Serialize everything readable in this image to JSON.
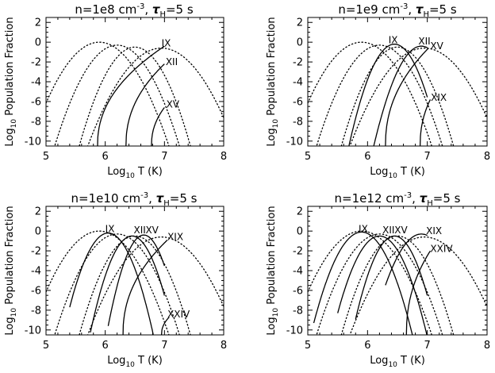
{
  "chart_data": [
    {
      "type": "line",
      "title_prefix": "n=1e8 cm",
      "title_sup": "-3",
      "title_mid": ", ",
      "title_tau": "τ",
      "title_tau_sub": "H",
      "title_suffix": "=5 s",
      "xlabel_pre": "Log",
      "xlabel_sub": "10",
      "xlabel_post": " T (K)",
      "ylabel_pre": "Log",
      "ylabel_sub": "10",
      "ylabel_post": " Population Fraction",
      "xlim": [
        5,
        8
      ],
      "ylim": [
        -10.5,
        2.5
      ],
      "xticks": [
        "5",
        "6",
        "7",
        "8"
      ],
      "yticks": [
        "2",
        "0",
        "-2",
        "-4",
        "-6",
        "-8",
        "-10"
      ],
      "series": [
        {
          "style": "dotted",
          "peak_x": 5.9,
          "peak_y": 0.0,
          "w": 0.55
        },
        {
          "style": "dotted",
          "peak_x": 6.2,
          "peak_y": -0.3,
          "w": 0.5
        },
        {
          "style": "dotted",
          "peak_x": 6.5,
          "peak_y": -0.5,
          "w": 0.45
        },
        {
          "style": "dotted",
          "peak_x": 6.95,
          "peak_y": -0.6,
          "w": 0.6
        },
        {
          "style": "solid",
          "start_x": 5.87,
          "end_x": 7.0,
          "end_y": -0.4
        },
        {
          "style": "solid",
          "start_x": 6.35,
          "end_x": 7.0,
          "end_y": -2.2
        },
        {
          "style": "solid",
          "start_x": 6.78,
          "end_x": 7.0,
          "end_y": -6.6
        }
      ],
      "labels": [
        {
          "text": "IX",
          "x": 6.95,
          "y": -0.1
        },
        {
          "text": "XII",
          "x": 7.02,
          "y": -2.0
        },
        {
          "text": "XV",
          "x": 7.03,
          "y": -6.3
        }
      ]
    },
    {
      "type": "line",
      "title_prefix": "n=1e9 cm",
      "title_sup": "-3",
      "title_mid": ", ",
      "title_tau": "τ",
      "title_tau_sub": "H",
      "title_suffix": "=5 s",
      "xlabel_pre": "Log",
      "xlabel_sub": "10",
      "xlabel_post": " T (K)",
      "ylabel_pre": "Log",
      "ylabel_sub": "10",
      "ylabel_post": " Population Fraction",
      "xlim": [
        5,
        8
      ],
      "ylim": [
        -10.5,
        2.5
      ],
      "xticks": [
        "5",
        "6",
        "7",
        "8"
      ],
      "yticks": [
        "2",
        "0",
        "-2",
        "-4",
        "-6",
        "-8",
        "-10"
      ],
      "series": [
        {
          "style": "dotted",
          "peak_x": 5.9,
          "peak_y": 0.0,
          "w": 0.55
        },
        {
          "style": "dotted",
          "peak_x": 6.2,
          "peak_y": -0.3,
          "w": 0.5
        },
        {
          "style": "dotted",
          "peak_x": 6.5,
          "peak_y": -0.5,
          "w": 0.45
        },
        {
          "style": "dotted",
          "peak_x": 6.95,
          "peak_y": -0.6,
          "w": 0.6
        },
        {
          "style": "solid",
          "peak_x": 6.45,
          "peak_y": -0.2,
          "w": 0.36,
          "start_x": 5.6,
          "end_x": 7.0
        },
        {
          "style": "solid",
          "peak_x": 6.9,
          "peak_y": -0.4,
          "w": 0.38,
          "start_x": 6.05,
          "end_x": 7.0
        },
        {
          "style": "solid",
          "start_x": 6.3,
          "end_x": 7.02,
          "end_y": -0.6
        },
        {
          "style": "solid",
          "start_x": 6.88,
          "end_x": 7.05,
          "end_y": -5.8
        }
      ],
      "labels": [
        {
          "text": "IX",
          "x": 6.35,
          "y": 0.2
        },
        {
          "text": "XII",
          "x": 6.85,
          "y": 0.1
        },
        {
          "text": "XV",
          "x": 7.05,
          "y": -0.4
        },
        {
          "text": "XIX",
          "x": 7.06,
          "y": -5.6
        }
      ]
    },
    {
      "type": "line",
      "title_prefix": "n=1e10 cm",
      "title_sup": "-3",
      "title_mid": ", ",
      "title_tau": "τ",
      "title_tau_sub": "H",
      "title_suffix": "=5 s",
      "xlabel_pre": "Log",
      "xlabel_sub": "10",
      "xlabel_post": " T (K)",
      "ylabel_pre": "Log",
      "ylabel_sub": "10",
      "ylabel_post": " Population Fraction",
      "xlim": [
        5,
        8
      ],
      "ylim": [
        -10.5,
        2.5
      ],
      "xticks": [
        "5",
        "6",
        "7",
        "8"
      ],
      "yticks": [
        "2",
        "0",
        "-2",
        "-4",
        "-6",
        "-8",
        "-10"
      ],
      "series": [
        {
          "style": "dotted",
          "peak_x": 5.9,
          "peak_y": 0.0,
          "w": 0.55
        },
        {
          "style": "dotted",
          "peak_x": 6.2,
          "peak_y": -0.3,
          "w": 0.5
        },
        {
          "style": "dotted",
          "peak_x": 6.5,
          "peak_y": -0.5,
          "w": 0.45
        },
        {
          "style": "dotted",
          "peak_x": 6.95,
          "peak_y": -0.6,
          "w": 0.6
        },
        {
          "style": "solid",
          "peak_x": 6.05,
          "peak_y": -0.2,
          "w": 0.36,
          "start_x": 5.4,
          "end_x": 7.0
        },
        {
          "style": "solid",
          "peak_x": 6.45,
          "peak_y": -0.5,
          "w": 0.34,
          "start_x": 5.75,
          "end_x": 7.0
        },
        {
          "style": "solid",
          "peak_x": 6.65,
          "peak_y": -0.4,
          "w": 0.3,
          "start_x": 6.05,
          "end_x": 7.0
        },
        {
          "style": "solid",
          "start_x": 6.3,
          "end_x": 7.05,
          "end_y": -0.9
        },
        {
          "style": "solid",
          "start_x": 6.95,
          "end_x": 7.08,
          "end_y": -8.7
        }
      ],
      "labels": [
        {
          "text": "IX",
          "x": 6.0,
          "y": 0.2
        },
        {
          "text": "XII",
          "x": 6.48,
          "y": 0.1
        },
        {
          "text": "XV",
          "x": 6.68,
          "y": 0.1
        },
        {
          "text": "XIX",
          "x": 7.05,
          "y": -0.6
        },
        {
          "text": "XXIV",
          "x": 7.05,
          "y": -8.4
        }
      ]
    },
    {
      "type": "line",
      "title_prefix": "n=1e12 cm",
      "title_sup": "-3",
      "title_mid": ", ",
      "title_tau": "τ",
      "title_tau_sub": "H",
      "title_suffix": "=5 s",
      "xlabel_pre": "Log",
      "xlabel_sub": "10",
      "xlabel_post": " T (K)",
      "ylabel_pre": "Log",
      "ylabel_sub": "10",
      "ylabel_post": " Population Fraction",
      "xlim": [
        5,
        8
      ],
      "ylim": [
        -10.5,
        2.5
      ],
      "xticks": [
        "5",
        "6",
        "7",
        "8"
      ],
      "yticks": [
        "2",
        "0",
        "-2",
        "-4",
        "-6",
        "-8",
        "-10"
      ],
      "series": [
        {
          "style": "dotted",
          "peak_x": 5.9,
          "peak_y": 0.0,
          "w": 0.55
        },
        {
          "style": "dotted",
          "peak_x": 6.2,
          "peak_y": -0.3,
          "w": 0.5
        },
        {
          "style": "dotted",
          "peak_x": 6.5,
          "peak_y": -0.5,
          "w": 0.45
        },
        {
          "style": "dotted",
          "peak_x": 6.95,
          "peak_y": -0.6,
          "w": 0.6
        },
        {
          "style": "solid",
          "peak_x": 5.9,
          "peak_y": -0.1,
          "w": 0.4,
          "start_x": 5.1,
          "end_x": 7.0
        },
        {
          "style": "solid",
          "peak_x": 6.2,
          "peak_y": -0.5,
          "w": 0.38,
          "start_x": 5.5,
          "end_x": 7.0
        },
        {
          "style": "solid",
          "peak_x": 6.45,
          "peak_y": -0.5,
          "w": 0.34,
          "start_x": 5.8,
          "end_x": 7.0
        },
        {
          "style": "solid",
          "peak_x": 6.9,
          "peak_y": -0.3,
          "w": 0.4,
          "start_x": 6.3,
          "end_x": 7.0
        },
        {
          "style": "solid",
          "start_x": 6.65,
          "end_x": 7.05,
          "end_y": -2.0
        }
      ],
      "labels": [
        {
          "text": "IX",
          "x": 5.85,
          "y": 0.2
        },
        {
          "text": "XII",
          "x": 6.25,
          "y": 0.1
        },
        {
          "text": "XV",
          "x": 6.45,
          "y": 0.1
        },
        {
          "text": "XIX",
          "x": 6.98,
          "y": 0.0
        },
        {
          "text": "XXIV",
          "x": 7.05,
          "y": -1.8
        }
      ]
    }
  ]
}
